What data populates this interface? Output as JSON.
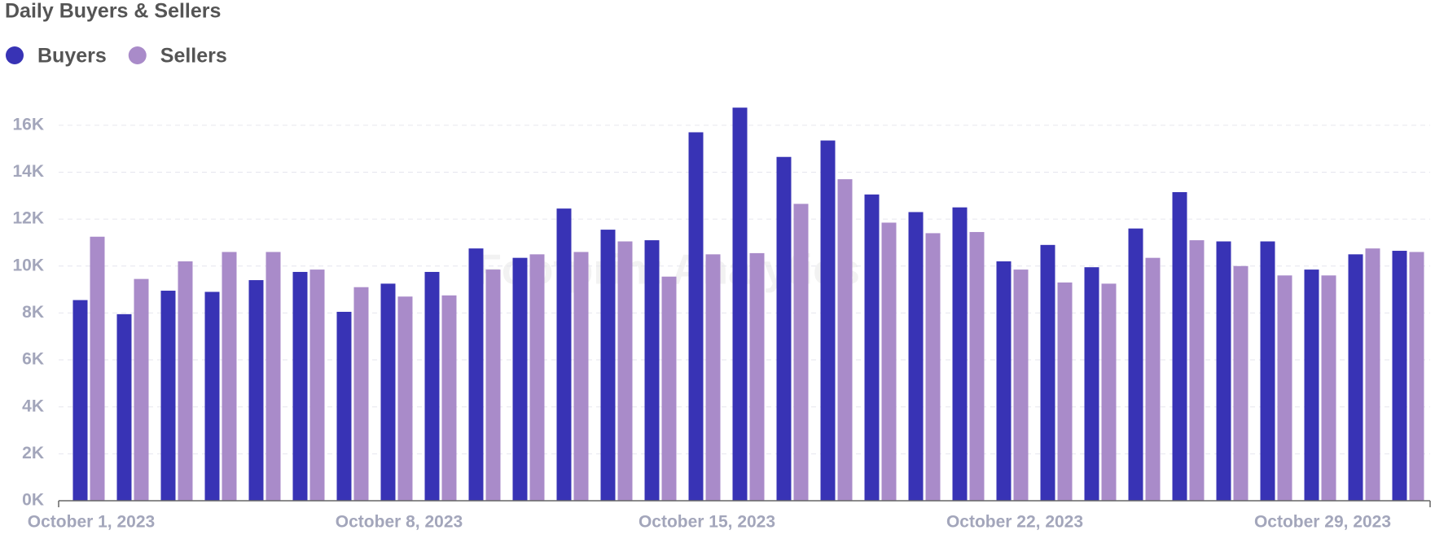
{
  "chart_data": {
    "type": "bar",
    "title": "Daily Buyers & Sellers",
    "watermark": "Footprint Analytics",
    "categories": [
      "October 1, 2023",
      null,
      null,
      null,
      null,
      null,
      null,
      "October 8, 2023",
      null,
      null,
      null,
      null,
      null,
      null,
      "October 15, 2023",
      null,
      null,
      null,
      null,
      null,
      null,
      "October 22, 2023",
      null,
      null,
      null,
      null,
      null,
      null,
      "October 29, 2023",
      null,
      null
    ],
    "series": [
      {
        "name": "Buyers",
        "color": "#3833b5",
        "values": [
          8550,
          7950,
          8950,
          8900,
          9400,
          9750,
          8050,
          9250,
          9750,
          10750,
          10350,
          12450,
          11550,
          11100,
          15700,
          16750,
          14650,
          15350,
          13050,
          12300,
          12500,
          10200,
          10900,
          9950,
          11600,
          13150,
          11050,
          11050,
          9850,
          10500,
          10650
        ]
      },
      {
        "name": "Sellers",
        "color": "#a98bc9",
        "values": [
          11250,
          9450,
          10200,
          10600,
          10600,
          9850,
          9100,
          8700,
          8750,
          9850,
          10500,
          10600,
          11050,
          9550,
          10500,
          10550,
          12650,
          13700,
          11850,
          11400,
          11450,
          9850,
          9300,
          9250,
          10350,
          11100,
          10000,
          9600,
          9600,
          10750,
          10600
        ]
      }
    ],
    "ylim": [
      0,
      17000
    ],
    "yticks": [
      {
        "value": 0,
        "label": "0K"
      },
      {
        "value": 2000,
        "label": "2K"
      },
      {
        "value": 4000,
        "label": "4K"
      },
      {
        "value": 6000,
        "label": "6K"
      },
      {
        "value": 8000,
        "label": "8K"
      },
      {
        "value": 10000,
        "label": "10K"
      },
      {
        "value": 12000,
        "label": "12K"
      },
      {
        "value": 14000,
        "label": "14K"
      },
      {
        "value": 16000,
        "label": "16K"
      }
    ],
    "grid": true
  }
}
